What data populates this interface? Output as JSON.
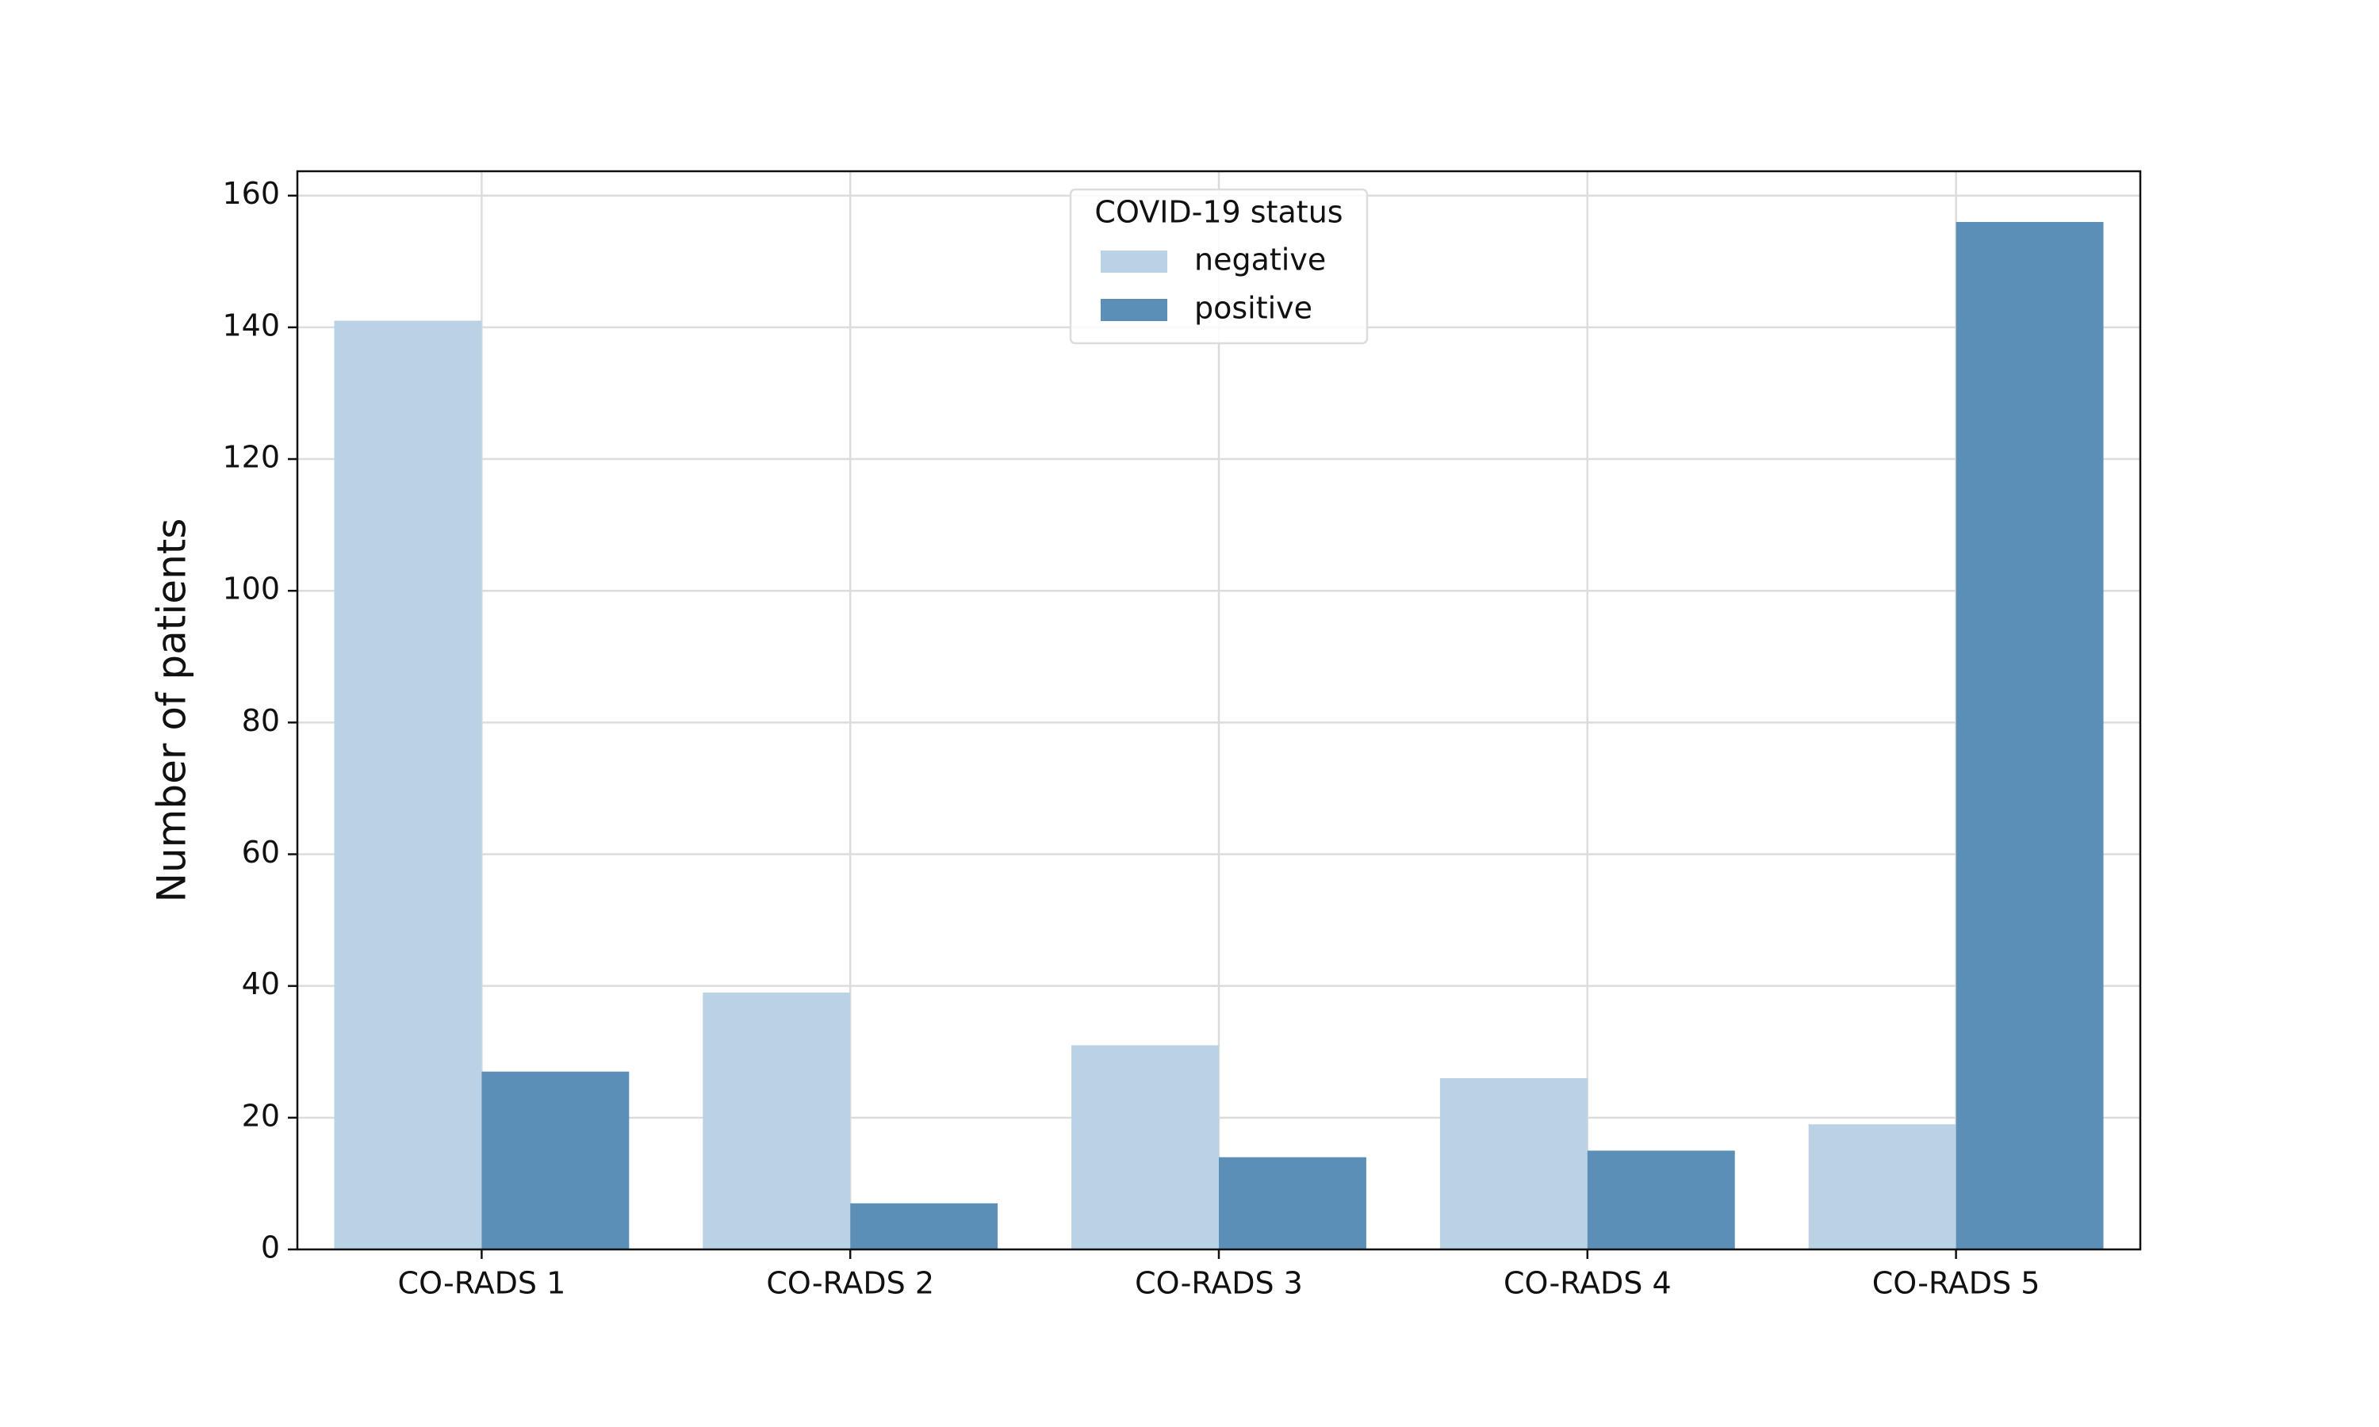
{
  "chart_data": {
    "type": "grouped_bar",
    "y_label": "Number of patients",
    "categories": [
      "CO-RADS 1",
      "CO-RADS 2",
      "CO-RADS 3",
      "CO-RADS 4",
      "CO-RADS 5"
    ],
    "series": [
      {
        "name": "negative",
        "color": "#b9d3e5",
        "values": [
          141,
          39,
          31,
          26,
          19
        ]
      },
      {
        "name": "positive",
        "color": "#5b8fb8",
        "values": [
          27,
          7,
          14,
          15,
          156
        ]
      }
    ],
    "legend_title": "COVID-19 status",
    "legend_position": "upper center",
    "ylim": [
      0,
      163.7
    ],
    "yticks": [
      0,
      20,
      40,
      60,
      80,
      100,
      120,
      140,
      160
    ],
    "grid": true
  }
}
